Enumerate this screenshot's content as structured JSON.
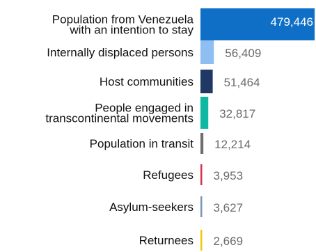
{
  "chart_data": {
    "type": "bar",
    "orientation": "horizontal",
    "title": "",
    "xlabel": "",
    "ylabel": "",
    "grid": false,
    "legend": "none",
    "categories": [
      "Population from Venezuela with an intention to stay",
      "Internally displaced persons",
      "Host communities",
      "People engaged in transcontinental movements",
      "Population in transit",
      "Refugees",
      "Asylum-seekers",
      "Returnees"
    ],
    "category_lines": [
      [
        "Population from Venezuela",
        "with an intention to stay"
      ],
      [
        "Internally displaced persons"
      ],
      [
        "Host communities"
      ],
      [
        "People engaged in",
        "transcontinental movements"
      ],
      [
        "Population in transit"
      ],
      [
        "Refugees"
      ],
      [
        "Asylum-seekers"
      ],
      [
        "Returnees"
      ]
    ],
    "values": [
      479446,
      56409,
      51464,
      32817,
      12214,
      3953,
      3627,
      2669
    ],
    "value_labels": [
      "479,446",
      "56,409",
      "51,464",
      "32,817",
      "12,214",
      "3,953",
      "3,627",
      "2,669"
    ],
    "colors": [
      "#0f6fc6",
      "#8fbff2",
      "#1f3864",
      "#0fb8a0",
      "#6e6e6e",
      "#d6334f",
      "#7b95b6",
      "#f2c80f"
    ],
    "xlim": [
      0,
      479446
    ]
  }
}
